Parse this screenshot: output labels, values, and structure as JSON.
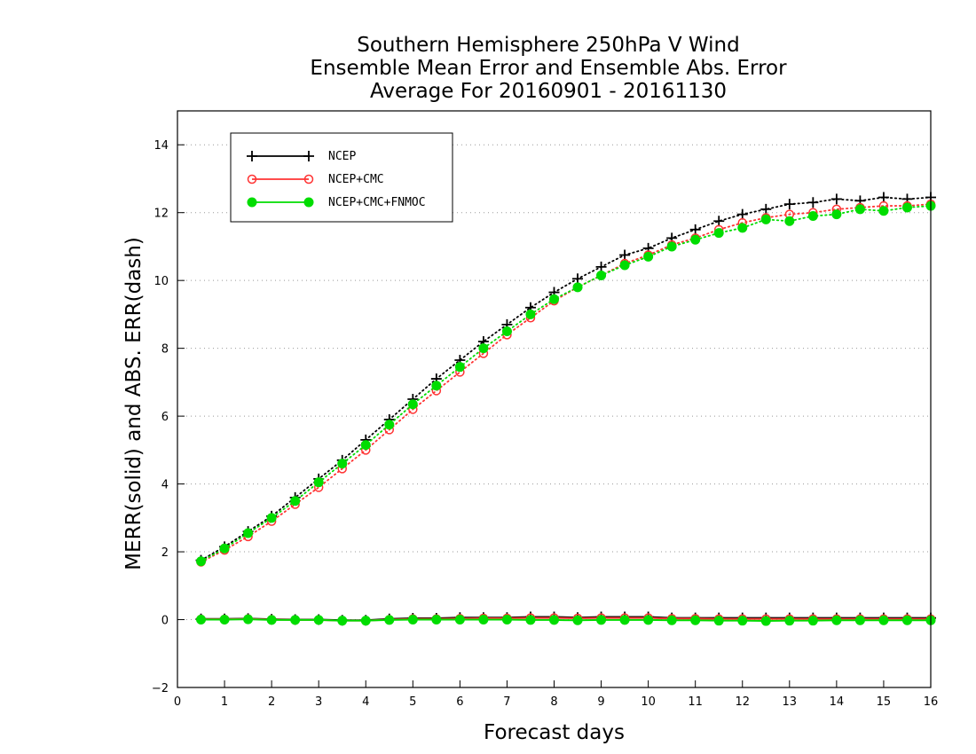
{
  "chart_data": {
    "type": "line",
    "title": [
      "Southern Hemisphere 250hPa V Wind",
      "Ensemble Mean Error and Ensemble Abs. Error",
      "Average For 20160901 - 20161130"
    ],
    "xlabel": "Forecast days",
    "ylabel": "MERR(solid) and ABS. ERR(dash)",
    "xlim": [
      0,
      16
    ],
    "ylim": [
      -2,
      15
    ],
    "x_ticks": [
      0,
      1,
      2,
      3,
      4,
      5,
      6,
      7,
      8,
      9,
      10,
      11,
      12,
      13,
      14,
      15,
      16
    ],
    "y_ticks": [
      -2,
      0,
      2,
      4,
      6,
      8,
      10,
      12,
      14
    ],
    "grid": "horizontal dotted",
    "legend_position": "top-left",
    "x": [
      0.5,
      1,
      1.5,
      2,
      2.5,
      3,
      3.5,
      4,
      4.5,
      5,
      5.5,
      6,
      6.5,
      7,
      7.5,
      8,
      8.5,
      9,
      9.5,
      10,
      10.5,
      11,
      11.5,
      12,
      12.5,
      13,
      13.5,
      14,
      14.5,
      15,
      15.5,
      16
    ],
    "series": [
      {
        "name": "NCEP",
        "color": "#000000",
        "marker": "plus",
        "abs_error": [
          1.75,
          2.15,
          2.6,
          3.05,
          3.6,
          4.15,
          4.7,
          5.3,
          5.9,
          6.5,
          7.1,
          7.65,
          8.2,
          8.7,
          9.2,
          9.65,
          10.05,
          10.4,
          10.75,
          10.95,
          11.25,
          11.5,
          11.75,
          11.95,
          12.1,
          12.25,
          12.3,
          12.4,
          12.35,
          12.45,
          12.4,
          12.45
        ],
        "mean_error": [
          0.02,
          0.02,
          0.03,
          0.01,
          0.0,
          0.0,
          -0.02,
          -0.02,
          0.02,
          0.04,
          0.04,
          0.06,
          0.06,
          0.06,
          0.08,
          0.08,
          0.06,
          0.08,
          0.08,
          0.08,
          0.05,
          0.05,
          0.05,
          0.05,
          0.05,
          0.05,
          0.05,
          0.05,
          0.05,
          0.05,
          0.05,
          0.05
        ]
      },
      {
        "name": "NCEP+CMC",
        "color": "#ff3333",
        "marker": "circle",
        "abs_error": [
          1.7,
          2.05,
          2.45,
          2.9,
          3.4,
          3.9,
          4.45,
          5.0,
          5.6,
          6.2,
          6.75,
          7.3,
          7.85,
          8.4,
          8.9,
          9.4,
          9.8,
          10.15,
          10.5,
          10.75,
          11.05,
          11.25,
          11.5,
          11.7,
          11.85,
          11.95,
          12.0,
          12.1,
          12.15,
          12.2,
          12.2,
          12.25
        ],
        "mean_error": [
          0.01,
          0.01,
          0.02,
          0.0,
          -0.01,
          -0.01,
          -0.03,
          -0.03,
          0.0,
          0.02,
          0.02,
          0.03,
          0.04,
          0.04,
          0.05,
          0.05,
          0.04,
          0.05,
          0.05,
          0.05,
          0.03,
          0.03,
          0.02,
          0.02,
          0.02,
          0.02,
          0.02,
          0.02,
          0.02,
          0.02,
          0.02,
          0.02
        ]
      },
      {
        "name": "NCEP+CMC+FNMOC",
        "color": "#00dd00",
        "marker": "filled-circle",
        "abs_error": [
          1.72,
          2.1,
          2.55,
          3.0,
          3.5,
          4.05,
          4.6,
          5.15,
          5.75,
          6.35,
          6.9,
          7.45,
          8.0,
          8.5,
          9.0,
          9.45,
          9.8,
          10.15,
          10.45,
          10.7,
          11.0,
          11.2,
          11.4,
          11.55,
          11.8,
          11.75,
          11.9,
          11.95,
          12.1,
          12.05,
          12.15,
          12.2
        ],
        "mean_error": [
          0.0,
          0.0,
          0.01,
          -0.01,
          -0.01,
          -0.01,
          -0.03,
          -0.03,
          -0.01,
          0.0,
          0.0,
          0.0,
          0.0,
          0.0,
          -0.01,
          -0.01,
          -0.02,
          -0.01,
          -0.01,
          -0.01,
          -0.02,
          -0.02,
          -0.03,
          -0.03,
          -0.04,
          -0.03,
          -0.03,
          -0.02,
          -0.02,
          -0.02,
          -0.02,
          -0.02
        ]
      }
    ]
  }
}
